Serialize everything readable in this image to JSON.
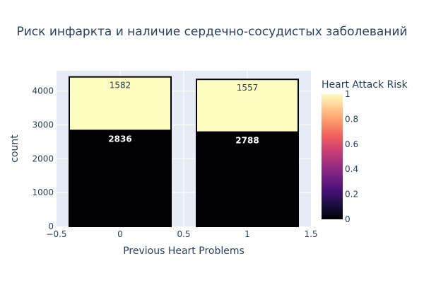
{
  "chart_data": {
    "type": "bar",
    "barmode": "stack",
    "title": "Риск инфаркта и наличие сердечно-сосудистых заболеваний",
    "xlabel": "Previous Heart Problems",
    "ylabel": "count",
    "x": [
      0,
      1
    ],
    "xlim": [
      -0.5,
      1.5
    ],
    "ylim": [
      0,
      4600
    ],
    "x_ticks": [
      "−0.5",
      "0",
      "0.5",
      "1",
      "1.5"
    ],
    "y_ticks": [
      "0",
      "1000",
      "2000",
      "3000",
      "4000"
    ],
    "series": [
      {
        "risk": 0,
        "values": [
          2836,
          2788
        ],
        "labels": [
          "2836",
          "2788"
        ],
        "color": "#000004"
      },
      {
        "risk": 1,
        "values": [
          1582,
          1557
        ],
        "labels": [
          "1582",
          "1557"
        ],
        "color": "#fcfdbf"
      }
    ],
    "colorbar": {
      "title": "Heart Attack Risk",
      "ticks": [
        "0",
        "0.2",
        "0.4",
        "0.6",
        "0.8",
        "1"
      ],
      "colorscale": [
        "#000004",
        "#180f3d",
        "#440f76",
        "#721f81",
        "#9e2f7f",
        "#cd4071",
        "#f1605d",
        "#fd9668",
        "#feca8d",
        "#fcfdbf"
      ]
    },
    "grid": true,
    "plot_bg": "#e5ecf6"
  }
}
